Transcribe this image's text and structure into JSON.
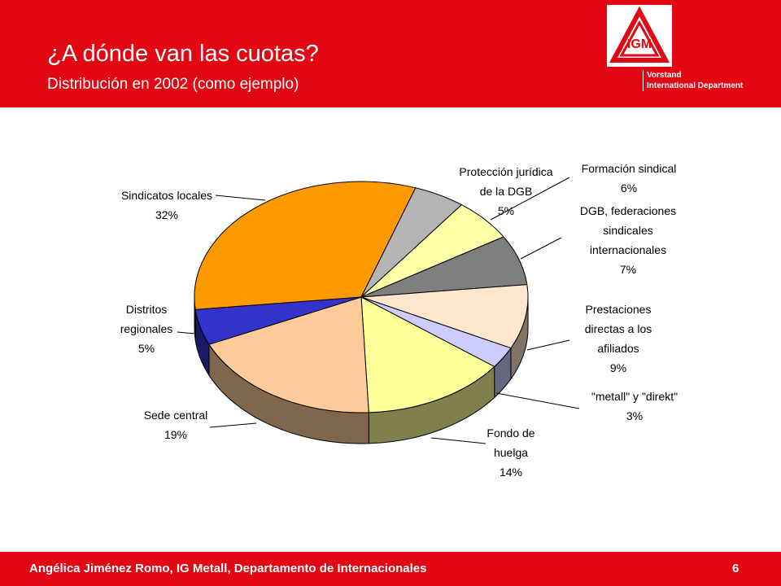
{
  "header": {
    "title": "¿A dónde van las cuotas?",
    "subtitle": "Distribución en 2002 (como ejemplo)",
    "dept_line1": "Vorstand",
    "dept_line2": "International Department",
    "logo_text": "IGM"
  },
  "footer": {
    "author": "Angélica Jiménez Romo, IG Metall, Departamento de Internacionales",
    "page_number": "6"
  },
  "colors": {
    "brand_red": "#e30613"
  },
  "chart_data": {
    "type": "pie",
    "style": "3d",
    "title": "",
    "slices": [
      {
        "label": [
          "Protección jurídica",
          "de la DGB",
          "5%"
        ],
        "value": 5,
        "color": "#b4b4b4"
      },
      {
        "label": [
          "Formación sindical",
          "6%"
        ],
        "value": 6,
        "color": "#ffffa8"
      },
      {
        "label": [
          "DGB, federaciones",
          "sindicales",
          "internacionales",
          "7%"
        ],
        "value": 7,
        "color": "#7f7f7f"
      },
      {
        "label": [
          "Prestaciones",
          "directas a los",
          "afiliados",
          "9%"
        ],
        "value": 9,
        "color": "#ffe6cc"
      },
      {
        "label": [
          "\"metall\" y \"direkt\"",
          "3%"
        ],
        "value": 3,
        "color": "#ccccff"
      },
      {
        "label": [
          "Fondo de",
          "huelga",
          "14%"
        ],
        "value": 14,
        "color": "#ffff99"
      },
      {
        "label": [
          "Sede central",
          "19%"
        ],
        "value": 19,
        "color": "#ffcc99"
      },
      {
        "label": [
          "Distritos",
          "regionales",
          "5%"
        ],
        "value": 5,
        "color": "#3333cc"
      },
      {
        "label": [
          "Sindicatos locales",
          "32%"
        ],
        "value": 32,
        "color": "#ff9900"
      }
    ]
  }
}
